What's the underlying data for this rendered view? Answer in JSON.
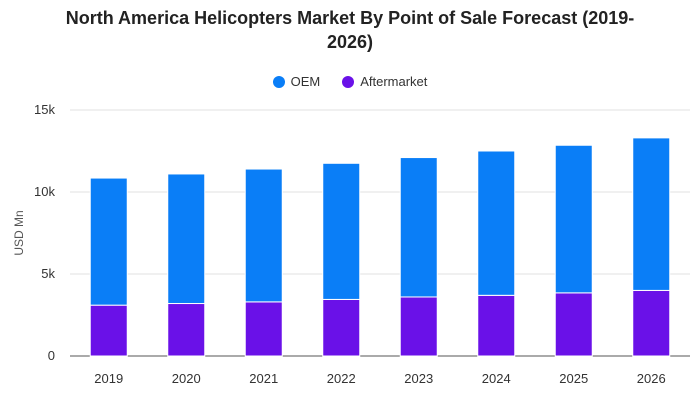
{
  "chart_data": {
    "type": "bar",
    "stacked": true,
    "title_line1": "North America Helicopters Market By Point of Sale Forecast (2019-",
    "title_line2": "2026)",
    "ylabel": "USD Mn",
    "xlabel": "",
    "categories": [
      "2019",
      "2020",
      "2021",
      "2022",
      "2023",
      "2024",
      "2025",
      "2026"
    ],
    "series": [
      {
        "name": "Aftermarket",
        "color": "#6a11e8",
        "values": [
          3100,
          3200,
          3300,
          3450,
          3600,
          3700,
          3850,
          4000
        ]
      },
      {
        "name": "OEM",
        "color": "#0a7ef7",
        "values": [
          7750,
          7900,
          8100,
          8300,
          8500,
          8800,
          9000,
          9300
        ]
      }
    ],
    "legend_order": [
      "OEM",
      "Aftermarket"
    ],
    "legend_position": "top-center",
    "ylim": [
      0,
      15000
    ],
    "yticks": [
      0,
      5000,
      10000,
      15000
    ],
    "ytick_labels": [
      "0",
      "5k",
      "10k",
      "15k"
    ],
    "grid": true
  }
}
